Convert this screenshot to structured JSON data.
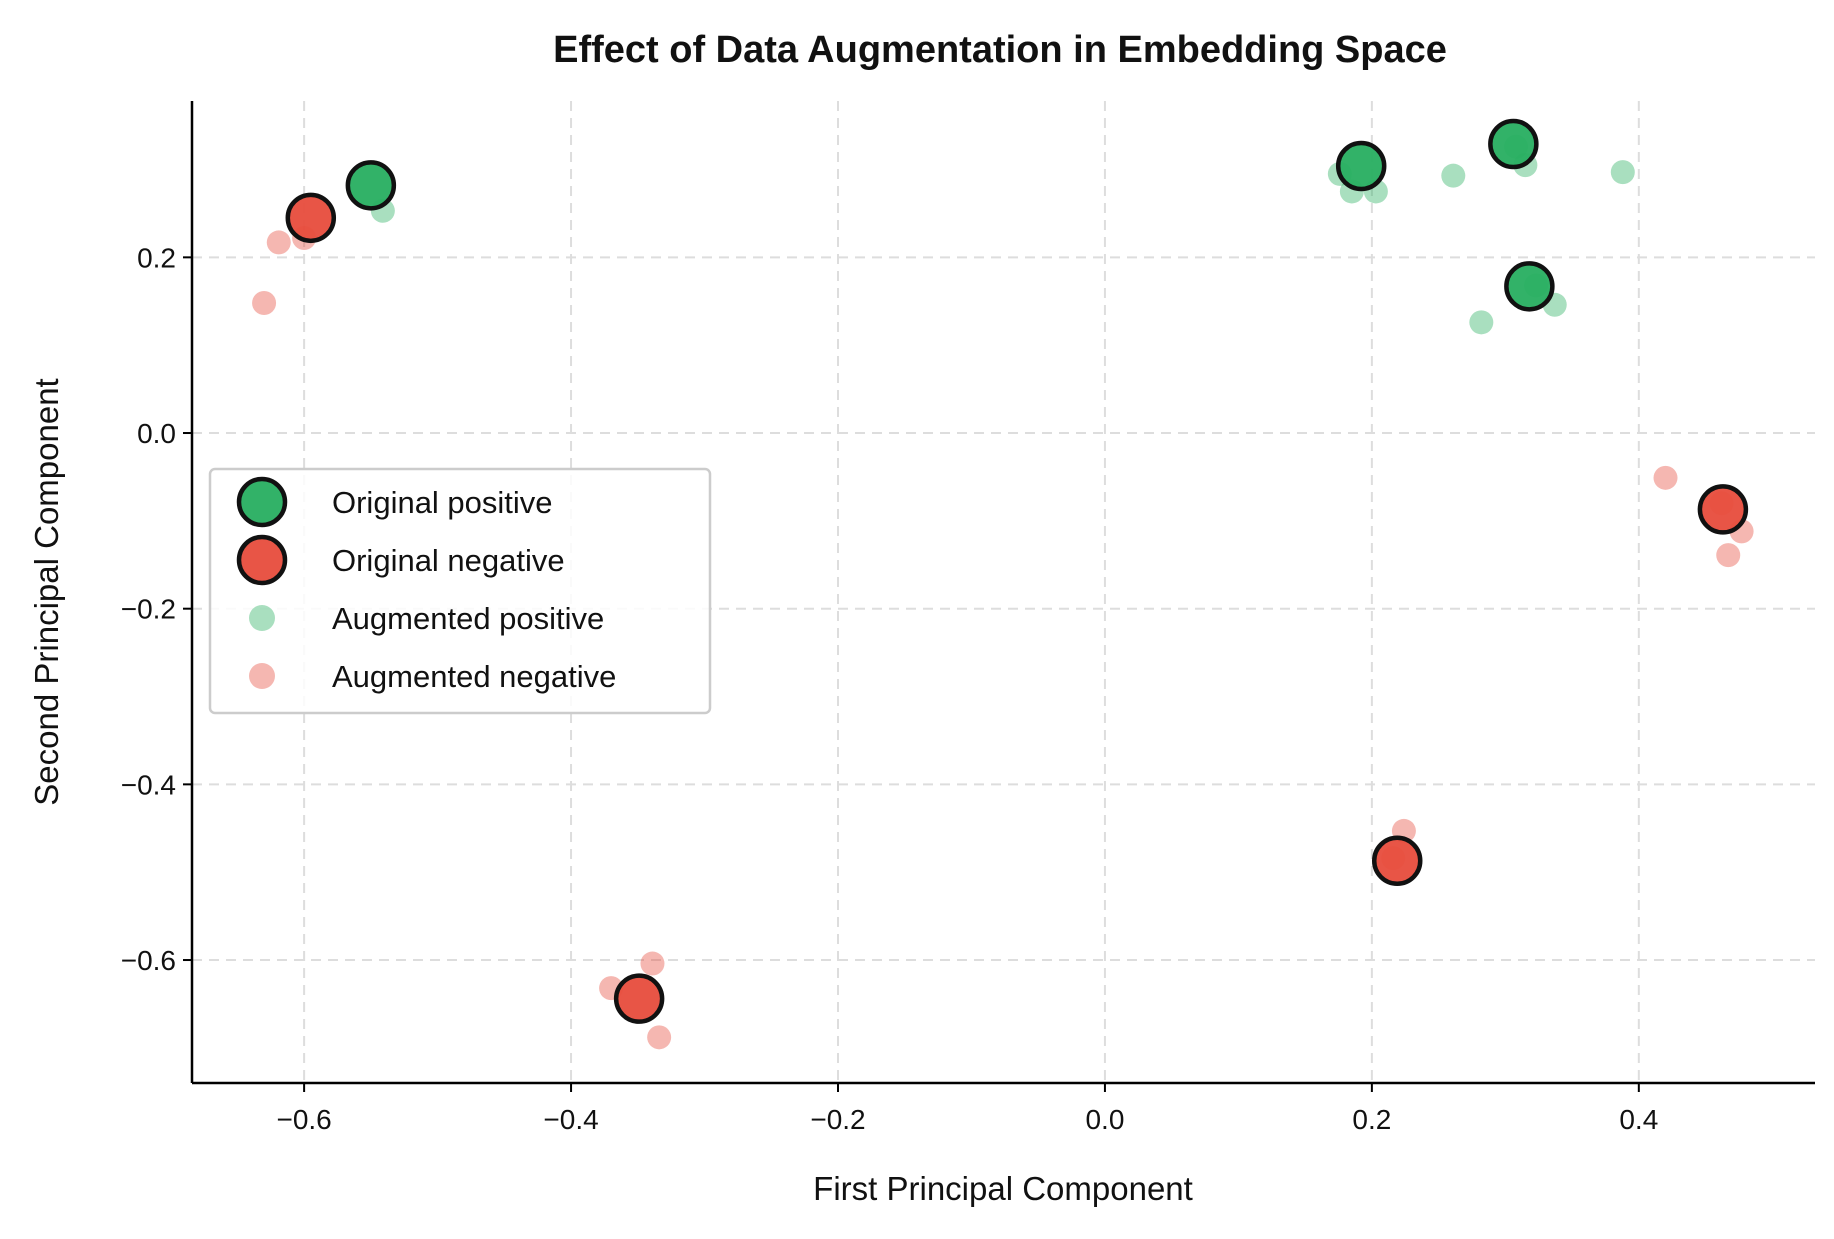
{
  "chart_data": {
    "type": "scatter",
    "title": "Effect of Data Augmentation in Embedding Space",
    "xlabel": "First Principal Component",
    "ylabel": "Second Principal Component",
    "xlim": [
      -0.684,
      0.532
    ],
    "ylim": [
      -0.74,
      0.378
    ],
    "xticks": [
      -0.6,
      -0.4,
      -0.2,
      0.0,
      0.2,
      0.4
    ],
    "xtick_labels": [
      "−0.6",
      "−0.4",
      "−0.2",
      "0.0",
      "0.2",
      "0.4"
    ],
    "yticks": [
      -0.6,
      -0.4,
      -0.2,
      0.0,
      0.2
    ],
    "ytick_labels": [
      "−0.6",
      "−0.4",
      "−0.2",
      "0.0",
      "0.2"
    ],
    "grid": true,
    "legend_position": "center-left",
    "series": [
      {
        "name": "Augmented positive",
        "color": "#27ae60",
        "alpha": 0.4,
        "kind": "augmented",
        "points": [
          [
            -0.541,
            0.253
          ],
          [
            0.176,
            0.295
          ],
          [
            0.185,
            0.275
          ],
          [
            0.203,
            0.275
          ],
          [
            0.261,
            0.293
          ],
          [
            0.315,
            0.305
          ],
          [
            0.388,
            0.297
          ],
          [
            0.282,
            0.126
          ],
          [
            0.337,
            0.146
          ],
          [
            0.323,
            0.168
          ],
          [
            0.308,
            0.326
          ]
        ]
      },
      {
        "name": "Augmented negative",
        "color": "#e74c3c",
        "alpha": 0.4,
        "kind": "augmented",
        "points": [
          [
            -0.619,
            0.217
          ],
          [
            -0.63,
            0.148
          ],
          [
            -0.6,
            0.222
          ],
          [
            -0.37,
            -0.632
          ],
          [
            -0.339,
            -0.604
          ],
          [
            -0.334,
            -0.688
          ],
          [
            0.224,
            -0.453
          ],
          [
            0.216,
            -0.484
          ],
          [
            0.42,
            -0.051
          ],
          [
            0.467,
            -0.139
          ],
          [
            0.477,
            -0.112
          ],
          [
            0.462,
            -0.08
          ]
        ]
      },
      {
        "name": "Original positive",
        "color": "#27ae60",
        "alpha": 0.95,
        "kind": "original",
        "points": [
          [
            -0.55,
            0.282
          ],
          [
            0.192,
            0.304
          ],
          [
            0.306,
            0.329
          ],
          [
            0.318,
            0.167
          ]
        ]
      },
      {
        "name": "Original negative",
        "color": "#e74c3c",
        "alpha": 0.95,
        "kind": "original",
        "points": [
          [
            -0.595,
            0.245
          ],
          [
            -0.349,
            -0.644
          ],
          [
            0.219,
            -0.487
          ],
          [
            0.463,
            -0.087
          ]
        ]
      }
    ],
    "legend": [
      "Original positive",
      "Original negative",
      "Augmented positive",
      "Augmented negative"
    ]
  }
}
